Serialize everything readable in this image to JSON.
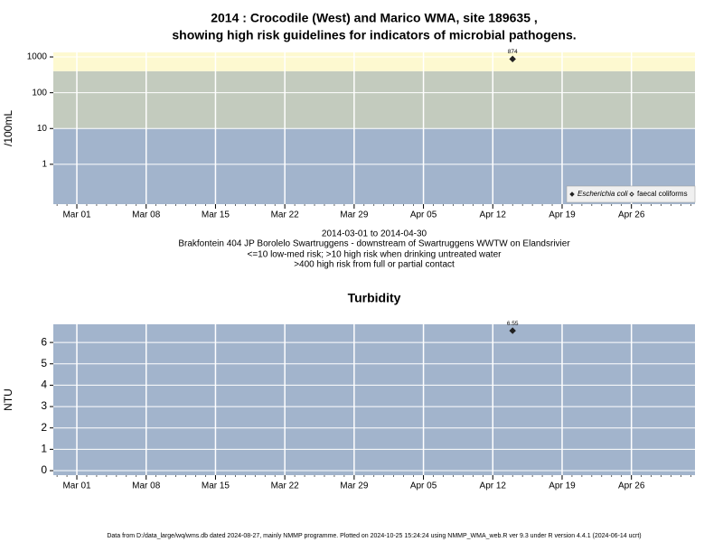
{
  "header": {
    "title_lines": [
      "2014 : Crocodile (West) and Marico WMA, site 189635 ,",
      "showing high risk guidelines for indicators of microbial pathogens."
    ]
  },
  "footer": "Data from D:/data_large/wq/wms.db dated 2024-08-27, mainly NMMP programme. Plotted on 2024-10-25 15:24:24 using NMMP_WMA_web.R ver 9.3 under R version 4.4.1 (2024-06-14 ucrt)",
  "chart_data": [
    {
      "type": "scatter",
      "y_label": "/100mL",
      "log_y": true,
      "grid": true,
      "annotations": [
        "2014-03-01 to 2014-04-30",
        "Brakfontein 404 JP Borolelo Swartruggens - downstream of Swartruggens WWTW on Elandsrivier",
        "<=10 low-med risk; >10 high risk when drinking untreated water",
        ">400 high risk from full or partial contact"
      ],
      "band_limits": [
        10,
        400
      ],
      "band_colors": [
        "#a2b4cc",
        "#c3cbbe",
        "#fdf9d0"
      ],
      "x": [
        "2014-04-14"
      ],
      "series": [
        {
          "name": "Escherichia coli",
          "color": "#222222",
          "marker": "filled",
          "values": [
            874
          ]
        },
        {
          "name": "faecal coliforms",
          "color": "#222222",
          "marker": "open",
          "values": [
            null
          ]
        }
      ],
      "legend": "bottom-right",
      "xlim": [
        "2014-02-26T15:00",
        "2014-05-02T10:00"
      ],
      "xticks": [
        {
          "value": "2014-03-01",
          "label": "Mar 01"
        },
        {
          "value": "2014-03-08",
          "label": "Mar 08"
        },
        {
          "value": "2014-03-15",
          "label": "Mar 15"
        },
        {
          "value": "2014-03-22",
          "label": "Mar 22"
        },
        {
          "value": "2014-03-29",
          "label": "Mar 29"
        },
        {
          "value": "2014-04-05",
          "label": "Apr 05"
        },
        {
          "value": "2014-04-12",
          "label": "Apr 12"
        },
        {
          "value": "2014-04-19",
          "label": "Apr 19"
        },
        {
          "value": "2014-04-26",
          "label": "Apr 26"
        }
      ],
      "ylim": [
        0.077,
        1340
      ],
      "yticks": [
        1,
        10,
        100,
        1000
      ]
    },
    {
      "type": "scatter",
      "title": "Turbidity",
      "y_label": "NTU",
      "log_y": false,
      "grid": true,
      "background": "#a2b4cc",
      "x": [
        "2014-04-14"
      ],
      "series": [
        {
          "name": "Turbidity",
          "color": "#222222",
          "marker": "filled",
          "values": [
            6.55
          ]
        }
      ],
      "xlim": [
        "2014-02-26T15:00",
        "2014-05-02T10:00"
      ],
      "xticks": [
        {
          "value": "2014-03-01",
          "label": "Mar 01"
        },
        {
          "value": "2014-03-08",
          "label": "Mar 08"
        },
        {
          "value": "2014-03-15",
          "label": "Mar 15"
        },
        {
          "value": "2014-03-22",
          "label": "Mar 22"
        },
        {
          "value": "2014-03-29",
          "label": "Mar 29"
        },
        {
          "value": "2014-04-05",
          "label": "Apr 05"
        },
        {
          "value": "2014-04-12",
          "label": "Apr 12"
        },
        {
          "value": "2014-04-19",
          "label": "Apr 19"
        },
        {
          "value": "2014-04-26",
          "label": "Apr 26"
        }
      ],
      "ylim": [
        -0.21,
        6.85
      ],
      "yticks": [
        0,
        1,
        2,
        3,
        4,
        5,
        6
      ]
    }
  ]
}
